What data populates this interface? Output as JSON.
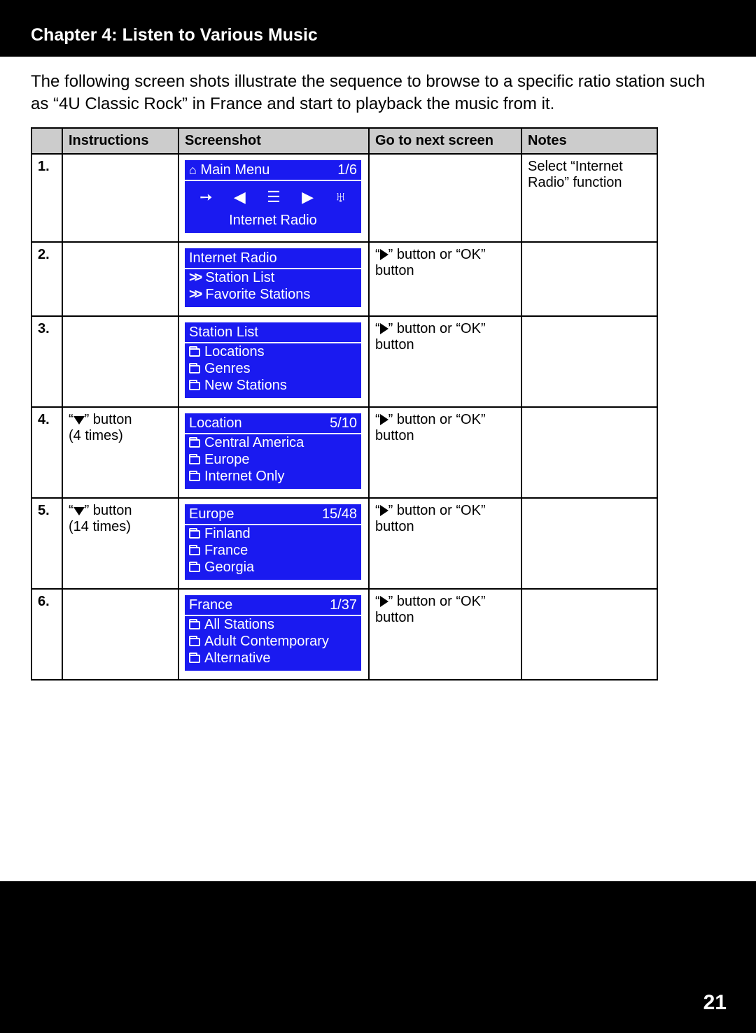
{
  "chapter_title": "Chapter 4: Listen to Various Music",
  "intro_text": "The following screen shots illustrate the sequence to browse to a specific ratio station such as “4U Classic Rock” in France and start to playback the music from it.",
  "page_number": "21",
  "columns": {
    "num": "",
    "instructions": "Instructions",
    "screenshot": "Screenshot",
    "goto": "Go to next screen",
    "notes": "Notes"
  },
  "glyphs": {
    "right_button_prefix": "“",
    "right_button_suffix": "” button or “OK” button",
    "down_button_prefix": "“",
    "down_button_suffix": "” button"
  },
  "rows": [
    {
      "num": "1.",
      "instructions": "",
      "goto": "",
      "notes": "Select “Internet Radio” function",
      "lcd": {
        "type": "mainmenu",
        "title_left": "Main Menu",
        "title_right": "1/6",
        "caption": "Internet Radio"
      }
    },
    {
      "num": "2.",
      "instructions": "",
      "goto_arrow": true,
      "notes": "",
      "lcd": {
        "type": "list",
        "title_left": "Internet Radio",
        "title_right": "",
        "items": [
          {
            "icon": "chev",
            "label": "Station List"
          },
          {
            "icon": "chev",
            "label": "Favorite Stations"
          }
        ]
      }
    },
    {
      "num": "3.",
      "instructions": "",
      "goto_arrow": true,
      "notes": "",
      "lcd": {
        "type": "list",
        "title_left": "Station List",
        "title_right": "",
        "items": [
          {
            "icon": "folder",
            "label": "Locations"
          },
          {
            "icon": "folder",
            "label": "Genres"
          },
          {
            "icon": "folder",
            "label": "New Stations"
          }
        ]
      }
    },
    {
      "num": "4.",
      "instructions_arrow": true,
      "instructions_times": "(4 times)",
      "goto_arrow": true,
      "notes": "",
      "lcd": {
        "type": "list",
        "title_left": "Location",
        "title_right": "5/10",
        "items": [
          {
            "icon": "folder",
            "label": "Central America"
          },
          {
            "icon": "folder",
            "label": "Europe"
          },
          {
            "icon": "folder",
            "label": "Internet Only"
          }
        ]
      }
    },
    {
      "num": "5.",
      "instructions_arrow": true,
      "instructions_times": "(14 times)",
      "goto_arrow": true,
      "notes": "",
      "lcd": {
        "type": "list",
        "title_left": "Europe",
        "title_right": "15/48",
        "items": [
          {
            "icon": "folder",
            "label": "Finland"
          },
          {
            "icon": "folder",
            "label": "France"
          },
          {
            "icon": "folder",
            "label": "Georgia"
          }
        ]
      }
    },
    {
      "num": "6.",
      "instructions": "",
      "goto_arrow": true,
      "notes": "",
      "lcd": {
        "type": "list",
        "title_left": "France",
        "title_right": "1/37",
        "items": [
          {
            "icon": "folder",
            "label": "All Stations"
          },
          {
            "icon": "folder",
            "label": "Adult Contemporary"
          },
          {
            "icon": "folder",
            "label": "Alternative"
          }
        ]
      }
    }
  ]
}
